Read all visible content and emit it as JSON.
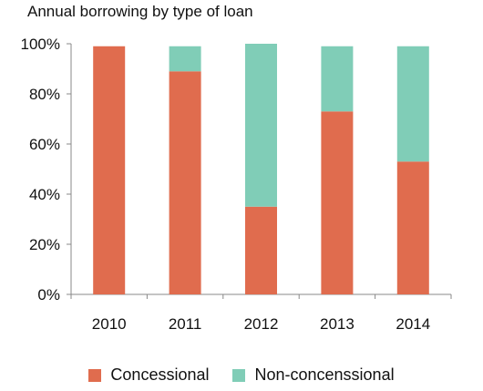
{
  "colors": {
    "concessional": "#E06C4E",
    "non_concessional": "#80CDB7",
    "axis": "#888888"
  },
  "chart_data": {
    "type": "bar",
    "stacked": true,
    "title": "Annual borrowing by type of loan",
    "categories": [
      "2010",
      "2011",
      "2012",
      "2013",
      "2014"
    ],
    "series": [
      {
        "name": "Concessional",
        "values": [
          99,
          89,
          35,
          73,
          53
        ]
      },
      {
        "name": "Non-concenssional",
        "values": [
          0,
          10,
          65,
          26,
          46
        ]
      }
    ],
    "ylim": [
      0,
      100
    ],
    "yticks": [
      "0%",
      "20%",
      "40%",
      "60%",
      "80%",
      "100%"
    ],
    "grid": false,
    "legend": "bottom"
  }
}
